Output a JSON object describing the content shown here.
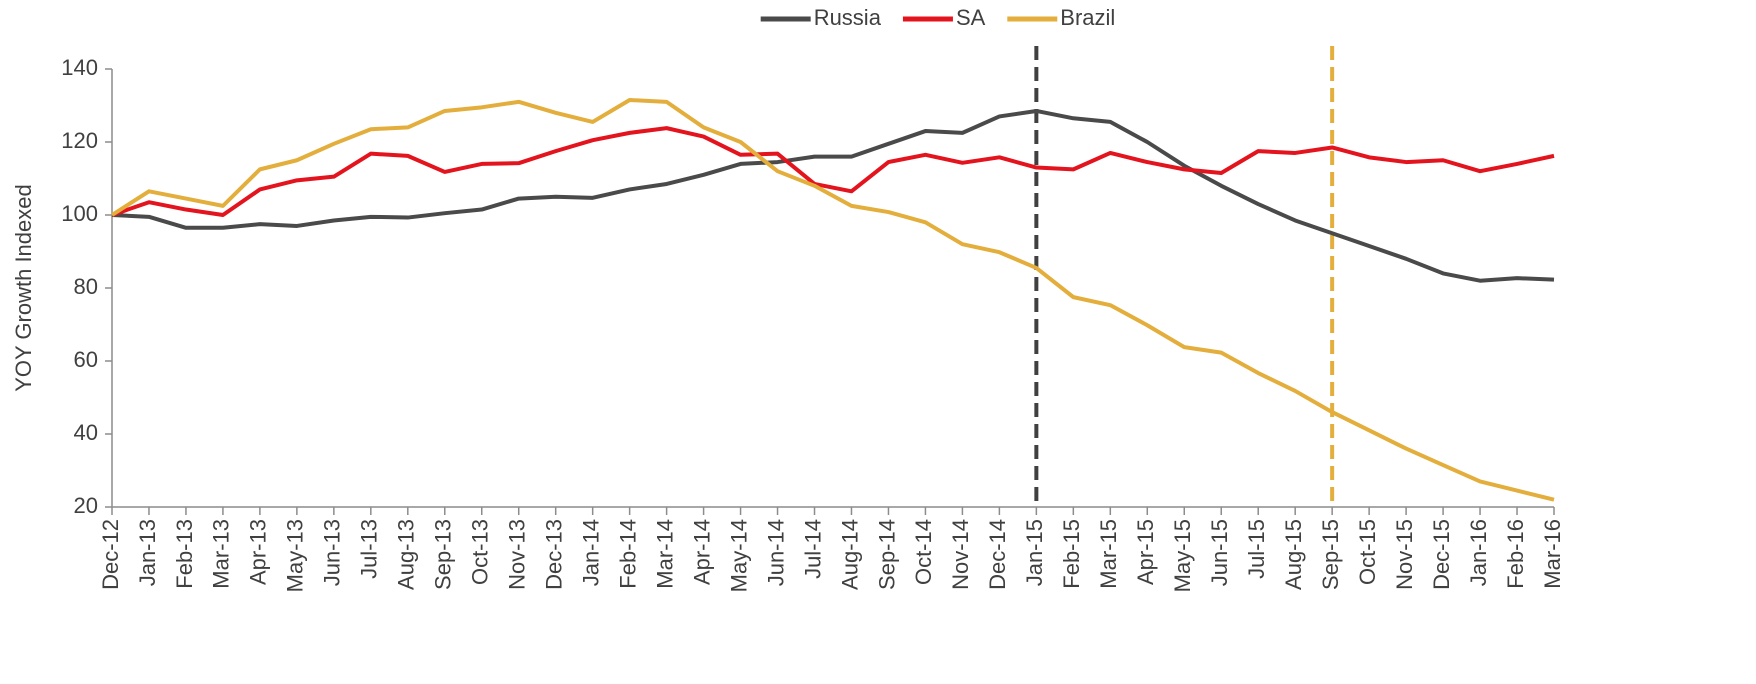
{
  "chart_data": {
    "type": "line",
    "y_label": "YOY Growth Indexed",
    "categories": [
      "Dec-12",
      "Jan-13",
      "Feb-13",
      "Mar-13",
      "Apr-13",
      "May-13",
      "Jun-13",
      "Jul-13",
      "Aug-13",
      "Sep-13",
      "Oct-13",
      "Nov-13",
      "Dec-13",
      "Jan-14",
      "Feb-14",
      "Mar-14",
      "Apr-14",
      "May-14",
      "Jun-14",
      "Jul-14",
      "Aug-14",
      "Sep-14",
      "Oct-14",
      "Nov-14",
      "Dec-14",
      "Jan-15",
      "Feb-15",
      "Mar-15",
      "Apr-15",
      "May-15",
      "Jun-15",
      "Jul-15",
      "Aug-15",
      "Sep-15",
      "Oct-15",
      "Nov-15",
      "Dec-15",
      "Jan-16",
      "Feb-16",
      "Mar-16"
    ],
    "series": [
      {
        "name": "Russia",
        "color": "#4a4a4a",
        "values": [
          100,
          99.5,
          96.5,
          96.5,
          97.5,
          97,
          98.5,
          99.5,
          99.3,
          100.5,
          101.5,
          104.5,
          105,
          104.7,
          107,
          108.5,
          111,
          114,
          114.5,
          116,
          116,
          119.5,
          123,
          122.5,
          127,
          128.5,
          126.5,
          125.5,
          120,
          113.5,
          108,
          103,
          98.5,
          95,
          91.5,
          88,
          84,
          82,
          82.7,
          82.3
        ]
      },
      {
        "name": "SA",
        "color": "#e3141d",
        "values": [
          100,
          103.5,
          101.5,
          100,
          107,
          109.5,
          110.5,
          116.8,
          116.2,
          111.8,
          114,
          114.2,
          117.5,
          120.5,
          122.5,
          123.8,
          121.5,
          116.5,
          116.8,
          108.5,
          106.5,
          114.5,
          116.5,
          114.3,
          115.8,
          113,
          112.5,
          117,
          114.5,
          112.5,
          111.5,
          117.5,
          117,
          118.5,
          115.8,
          114.5,
          115,
          112,
          114,
          116.2
        ]
      },
      {
        "name": "Brazil",
        "color": "#e3ae3c",
        "values": [
          100,
          106.5,
          104.5,
          102.5,
          112.5,
          115,
          119.5,
          123.5,
          124,
          128.5,
          129.5,
          131,
          128,
          125.5,
          131.5,
          131,
          124,
          120,
          112,
          108,
          102.5,
          100.8,
          98,
          92,
          89.8,
          85.5,
          77.5,
          75.3,
          69.8,
          63.8,
          62.3,
          56.7,
          51.8,
          46,
          41,
          36,
          31.5,
          27,
          24.5,
          22
        ]
      }
    ],
    "vertical_lines": [
      {
        "x": "Jan-15",
        "color": "#404040"
      },
      {
        "x": "Sep-15",
        "color": "#e3ae3c"
      }
    ],
    "ylim": [
      20,
      140
    ],
    "yticks": [
      20,
      40,
      60,
      80,
      100,
      120,
      140
    ],
    "grid": false,
    "legend": "top"
  }
}
